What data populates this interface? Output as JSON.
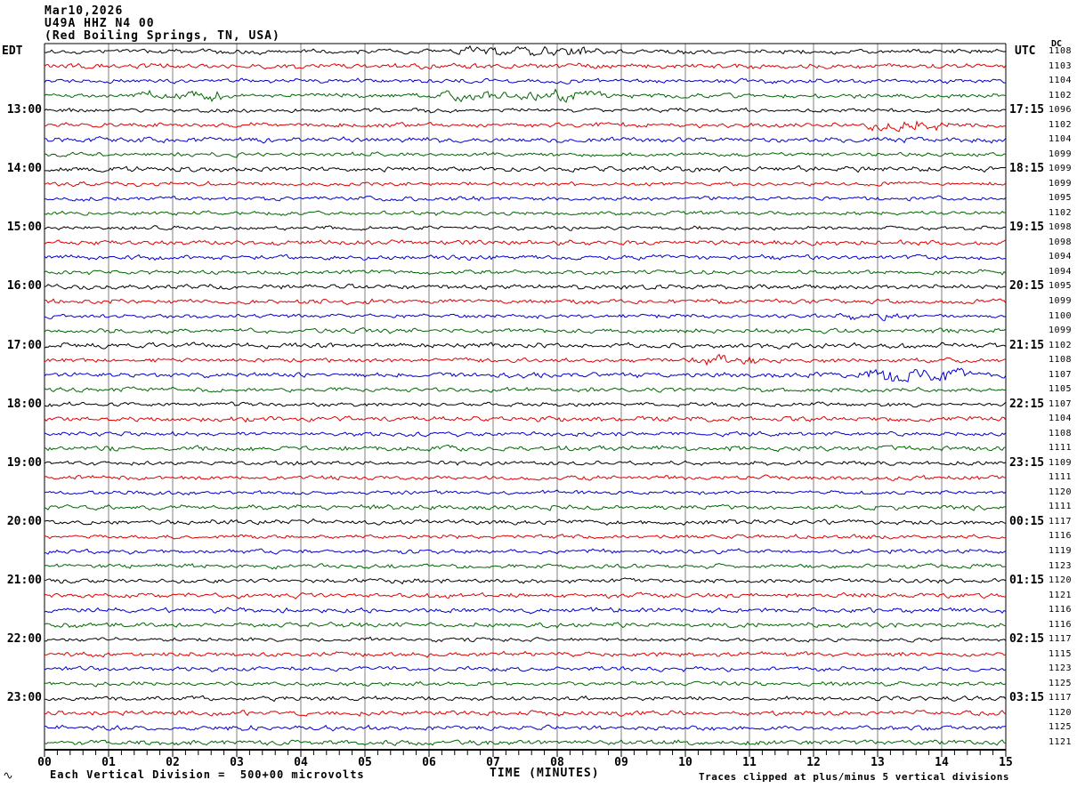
{
  "title": {
    "date": "Mar10,2026",
    "station": "U49A HHZ N4 00",
    "location": "(Red Boiling Springs, TN, USA)"
  },
  "axes": {
    "left_header": "EDT",
    "right_header": "UTC",
    "dc_header": "DC",
    "left_hour_labels": [
      "13:00",
      "14:00",
      "15:00",
      "16:00",
      "17:00",
      "18:00",
      "19:00",
      "20:00",
      "21:00",
      "22:00",
      "23:00"
    ],
    "right_hour_labels": [
      "17:15",
      "18:15",
      "19:15",
      "20:15",
      "21:15",
      "22:15",
      "23:15",
      "00:15",
      "01:15",
      "02:15",
      "03:15"
    ],
    "x_tick_labels": [
      "00",
      "01",
      "02",
      "03",
      "04",
      "05",
      "06",
      "07",
      "08",
      "09",
      "10",
      "11",
      "12",
      "13",
      "14",
      "15"
    ],
    "x_axis_label": "TIME (MINUTES)"
  },
  "footer": {
    "scale_note": "Each Vertical Division =  500+00 microvolts",
    "clip_note": "Traces clipped at plus/minus 5 vertical divisions"
  },
  "chart_data": {
    "type": "line",
    "subtype": "helicorder-seismogram",
    "title": "U49A HHZ N4 00 (Red Boiling Springs, TN, USA) Mar10,2026",
    "xlabel": "TIME (MINUTES)",
    "x_range_minutes": [
      0,
      15
    ],
    "rows": 48,
    "minutes_per_row": 15,
    "row_color_cycle": [
      "#000000",
      "#dd0000",
      "#0000cc",
      "#006600"
    ],
    "grid_color": "#808080",
    "grid": true,
    "left_time_header": "EDT",
    "right_time_header": "UTC",
    "dc_header": "DC",
    "dc_values": [
      1108,
      1103,
      1104,
      1102,
      1096,
      1102,
      1104,
      1099,
      1099,
      1099,
      1095,
      1102,
      1098,
      1098,
      1094,
      1094,
      1095,
      1099,
      1100,
      1099,
      1102,
      1108,
      1107,
      1105,
      1107,
      1104,
      1108,
      1111,
      1109,
      1111,
      1120,
      1111,
      1117,
      1116,
      1119,
      1123,
      1120,
      1121,
      1116,
      1116,
      1117,
      1115,
      1123,
      1125,
      1117,
      1120,
      1125,
      1121
    ],
    "labeled_row_indices": [
      4,
      8,
      12,
      16,
      20,
      24,
      28,
      32,
      36,
      40,
      44
    ],
    "bursts": [
      {
        "row": 0,
        "start_min": 6.6,
        "end_min": 8.4,
        "gain": 2.2
      },
      {
        "row": 3,
        "start_min": 1.5,
        "end_min": 2.7,
        "gain": 2.2
      },
      {
        "row": 3,
        "start_min": 6.2,
        "end_min": 8.6,
        "gain": 2.4
      },
      {
        "row": 5,
        "start_min": 12.9,
        "end_min": 13.9,
        "gain": 2.6
      },
      {
        "row": 18,
        "start_min": 12.5,
        "end_min": 13.5,
        "gain": 2.0
      },
      {
        "row": 21,
        "start_min": 10.3,
        "end_min": 11.1,
        "gain": 2.3
      },
      {
        "row": 22,
        "start_min": 12.9,
        "end_min": 14.3,
        "gain": 3.0
      }
    ],
    "noise_seed": 20260310,
    "clip_divisions": 5
  }
}
